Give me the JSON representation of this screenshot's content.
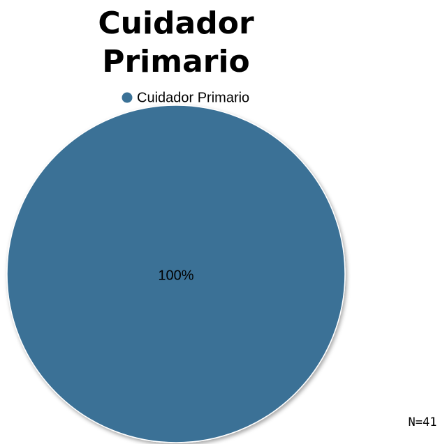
{
  "chart_data": {
    "type": "pie",
    "title": "Cuidador Primario",
    "categories": [
      "Cuidador Primario"
    ],
    "values": [
      100
    ],
    "value_labels": [
      "100%"
    ],
    "colors": [
      "#3a7196"
    ],
    "legend": "top",
    "annotation": "N=41"
  }
}
